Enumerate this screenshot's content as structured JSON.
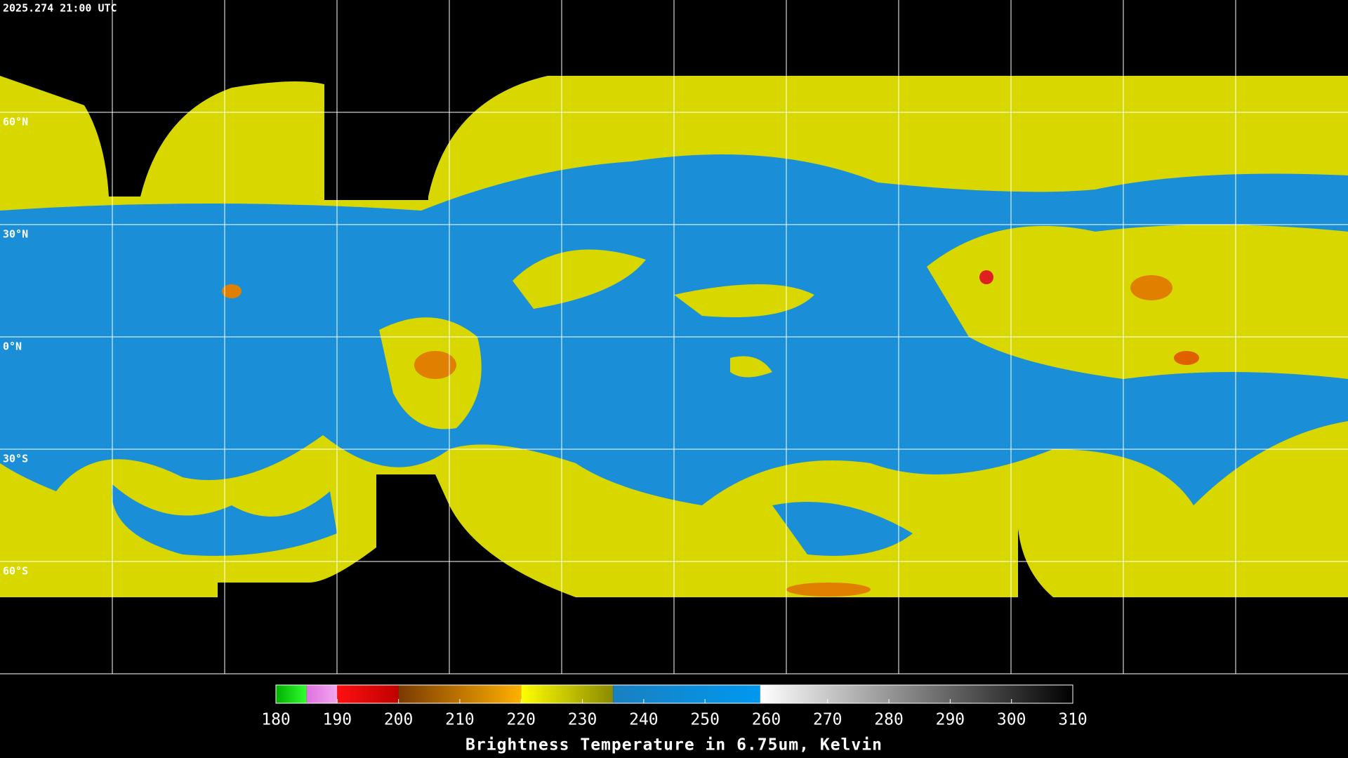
{
  "header": {
    "timestamp": "2025.274 21:00 UTC"
  },
  "map": {
    "lat_range": [
      90,
      -90
    ],
    "lon_lines": 12,
    "lat_ticks": [
      {
        "value": 60,
        "label": "60°N"
      },
      {
        "value": 30,
        "label": "30°N"
      },
      {
        "value": 0,
        "label": "0°N"
      },
      {
        "value": -30,
        "label": "30°S"
      },
      {
        "value": -60,
        "label": "60°S"
      }
    ]
  },
  "colorbar": {
    "title": "Brightness Temperature in 6.75um, Kelvin",
    "range": [
      180,
      310
    ],
    "ticks": [
      180,
      190,
      200,
      210,
      220,
      230,
      240,
      250,
      260,
      270,
      280,
      290,
      300,
      310
    ],
    "segments": [
      {
        "from": 180,
        "to": 185,
        "colors": [
          "#00b000",
          "#30ff30"
        ]
      },
      {
        "from": 185,
        "to": 190,
        "colors": [
          "#e070e0",
          "#f0a8f0"
        ]
      },
      {
        "from": 190,
        "to": 200,
        "colors": [
          "#ff1010",
          "#c00000"
        ]
      },
      {
        "from": 200,
        "to": 220,
        "colors": [
          "#7a3a00",
          "#ffb000"
        ]
      },
      {
        "from": 220,
        "to": 235,
        "colors": [
          "#ffff00",
          "#8a8a00"
        ]
      },
      {
        "from": 235,
        "to": 259,
        "colors": [
          "#1a80c0",
          "#0098f0"
        ]
      },
      {
        "from": 259,
        "to": 310,
        "colors": [
          "#ffffff",
          "#000000"
        ]
      }
    ]
  }
}
